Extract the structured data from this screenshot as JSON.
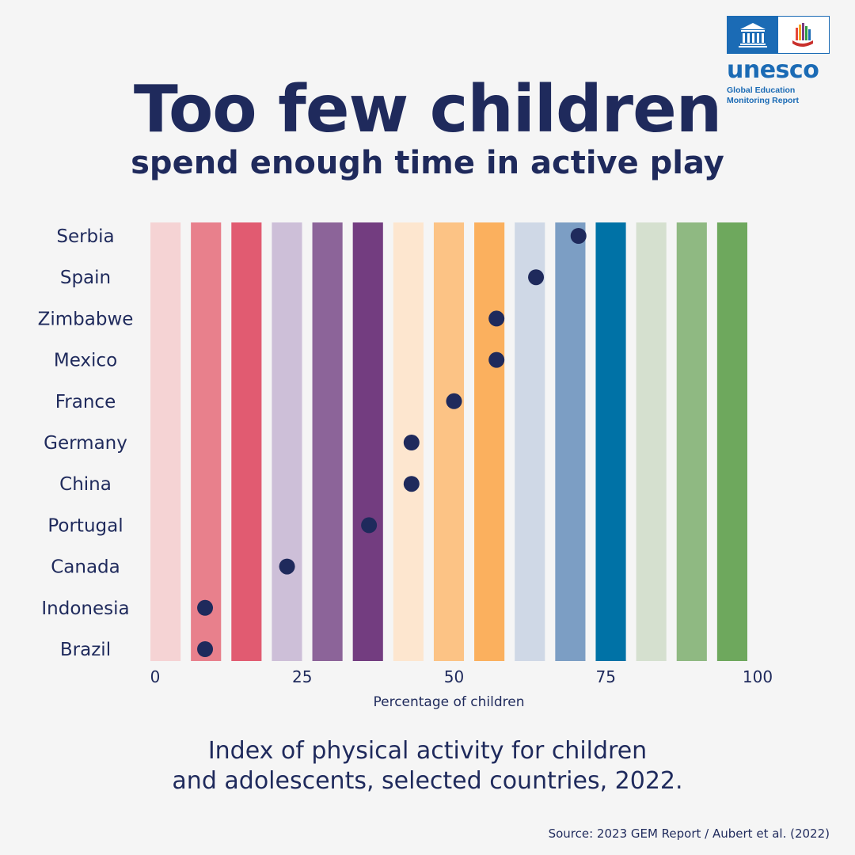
{
  "header": {
    "title": "Too few children",
    "subtitle": "spend enough time in active play"
  },
  "logo": {
    "wordmark": "unesco",
    "line1": "Global Education",
    "line2": "Monitoring Report"
  },
  "chart_data": {
    "type": "scatter",
    "xlabel": "Percentage of children",
    "xlim": [
      0,
      100
    ],
    "xticks": [
      0,
      25,
      50,
      75,
      100
    ],
    "categories": [
      "Serbia",
      "Spain",
      "Zimbabwe",
      "Mexico",
      "France",
      "Germany",
      "China",
      "Portugal",
      "Canada",
      "Indonesia",
      "Brazil"
    ],
    "values": [
      70.5,
      63.5,
      57,
      57,
      50,
      43,
      43,
      36,
      22.5,
      9,
      9
    ],
    "band_colors": [
      "#f5d3d4",
      "#e8808c",
      "#e15b71",
      "#cdbfd8",
      "#8c6499",
      "#733d80",
      "#fde6cf",
      "#fcc385",
      "#fbb05e",
      "#cfd8e6",
      "#7c9ec4",
      "#0072a6",
      "#d5e0cf",
      "#8fb982",
      "#6ea85d"
    ],
    "dot_color": "#1f2a5c"
  },
  "caption": {
    "line1": "Index of physical activity for children",
    "line2": "and adolescents, selected countries, 2022."
  },
  "source": "Source: 2023 GEM Report / Aubert et al. (2022)"
}
